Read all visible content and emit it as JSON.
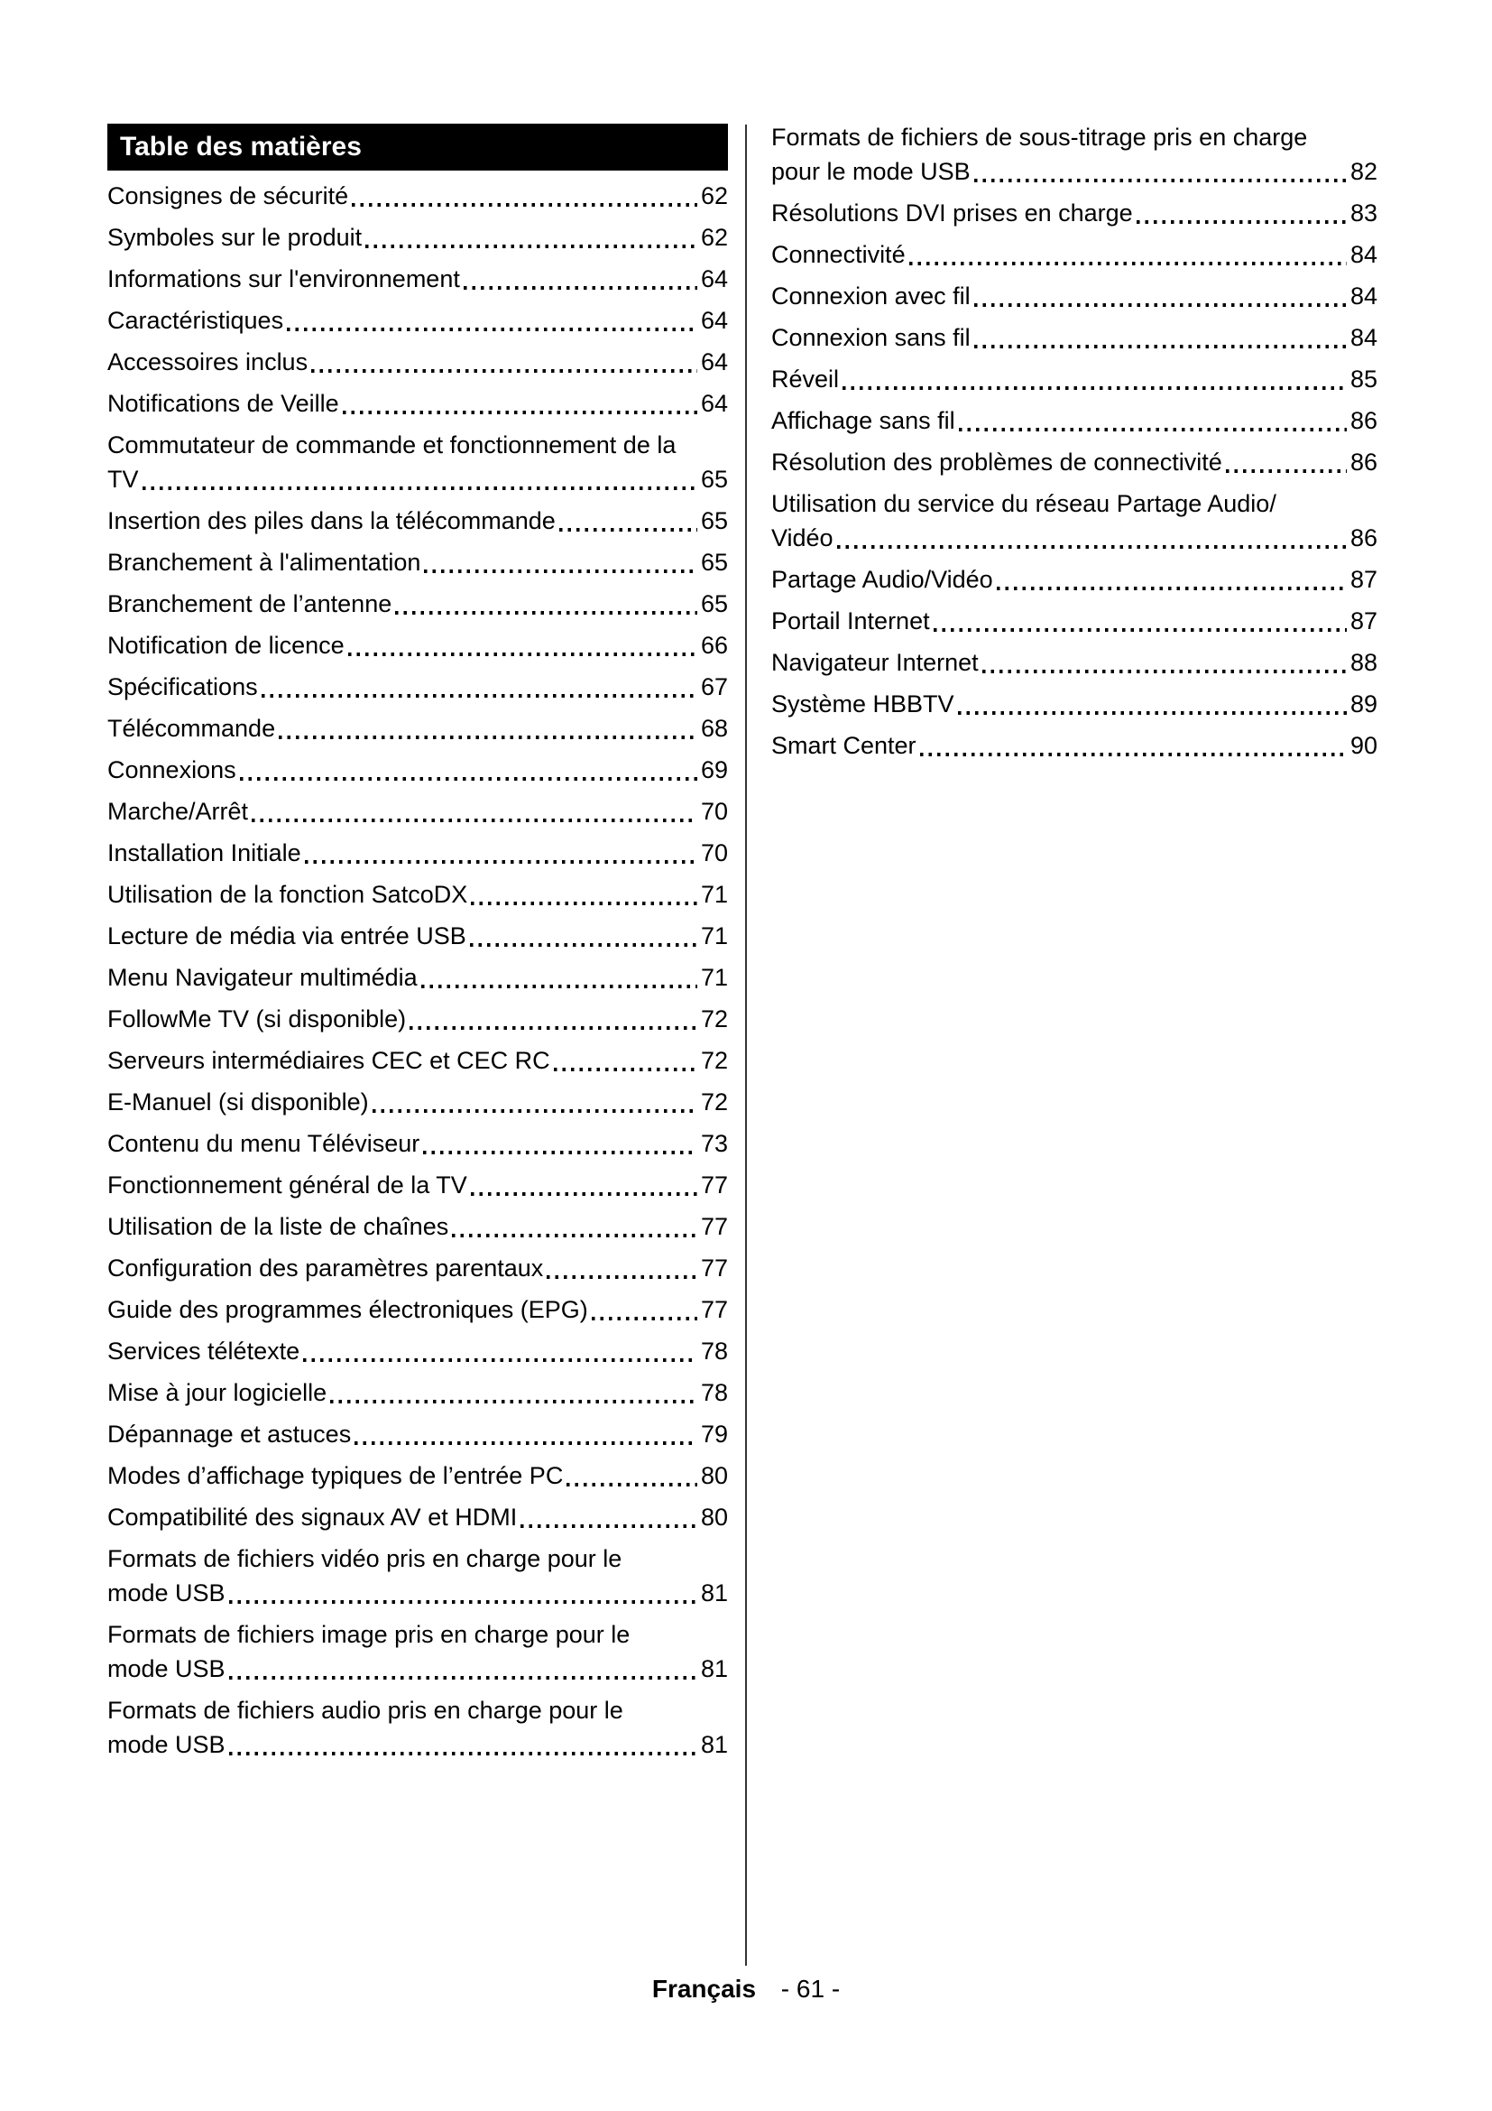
{
  "toc": {
    "title": "Table des matières",
    "header_bg": "#000000",
    "header_color": "#ffffff",
    "left_column": [
      {
        "label": "Consignes de sécurité",
        "page": "62"
      },
      {
        "label": "Symboles sur le produit",
        "page": "62"
      },
      {
        "label": "Informations sur l'environnement",
        "page": "64"
      },
      {
        "label": "Caractéristiques",
        "page": "64"
      },
      {
        "label": "Accessoires inclus",
        "page": "64"
      },
      {
        "label": "Notifications de Veille",
        "page": "64"
      },
      {
        "label": "Commutateur de commande et fonctionnement de la",
        "label2": "TV",
        "page": "65"
      },
      {
        "label": "Insertion des piles dans la télécommande",
        "page": "65"
      },
      {
        "label": "Branchement à l'alimentation",
        "page": "65"
      },
      {
        "label": "Branchement de l’antenne",
        "page": "65"
      },
      {
        "label": "Notification de licence",
        "page": "66"
      },
      {
        "label": "Spécifications",
        "page": "67"
      },
      {
        "label": "Télécommande",
        "page": "68"
      },
      {
        "label": "Connexions",
        "page": "69"
      },
      {
        "label": "Marche/Arrêt",
        "page": "70"
      },
      {
        "label": "Installation Initiale",
        "page": "70"
      },
      {
        "label": "Utilisation de la fonction SatcoDX",
        "page": "71"
      },
      {
        "label": "Lecture de média via entrée USB",
        "page": "71"
      },
      {
        "label": "Menu Navigateur multimédia",
        "page": "71"
      },
      {
        "label": "FollowMe TV (si disponible)",
        "page": "72"
      },
      {
        "label": "Serveurs intermédiaires CEC et CEC RC",
        "page": "72"
      },
      {
        "label": "E-Manuel (si disponible)",
        "page": "72"
      },
      {
        "label": "Contenu du menu Téléviseur",
        "page": "73"
      },
      {
        "label": "Fonctionnement général de la TV",
        "page": "77"
      },
      {
        "label": "Utilisation de la liste de chaînes",
        "page": "77"
      },
      {
        "label": "Configuration des paramètres parentaux",
        "page": "77"
      },
      {
        "label": "Guide des programmes électroniques (EPG)",
        "page": "77"
      },
      {
        "label": "Services télétexte",
        "page": "78"
      },
      {
        "label": "Mise à jour logicielle",
        "page": "78"
      },
      {
        "label": "Dépannage et astuces",
        "page": "79"
      },
      {
        "label": "Modes d’affichage typiques de l’entrée PC",
        "page": "80"
      },
      {
        "label": "Compatibilité des signaux AV et HDMI",
        "page": "80"
      },
      {
        "label": "Formats de fichiers vidéo pris en charge pour le",
        "label2": "mode USB",
        "page": "81"
      },
      {
        "label": "Formats de fichiers image pris en charge pour le",
        "label2": "mode USB",
        "page": "81"
      },
      {
        "label": "Formats de fichiers audio pris en charge pour le",
        "label2": "mode USB",
        "page": "81"
      }
    ],
    "right_column": [
      {
        "label": "Formats de fichiers de sous-titrage pris en charge",
        "label2": "pour le mode USB",
        "page": "82"
      },
      {
        "label": "Résolutions DVI prises en charge",
        "page": "83"
      },
      {
        "label": "Connectivité",
        "page": "84"
      },
      {
        "label": "Connexion avec fil",
        "page": "84"
      },
      {
        "label": "Connexion sans fil",
        "page": "84"
      },
      {
        "label": "Réveil",
        "page": "85"
      },
      {
        "label": "Affichage sans fil",
        "page": "86"
      },
      {
        "label": "Résolution des problèmes de connectivité",
        "page": "86"
      },
      {
        "label": "Utilisation du service du réseau Partage Audio/",
        "label2": "Vidéo",
        "page": "86"
      },
      {
        "label": "Partage Audio/Vidéo",
        "page": "87"
      },
      {
        "label": "Portail Internet",
        "page": "87"
      },
      {
        "label": "Navigateur Internet",
        "page": "88"
      },
      {
        "label": "Système HBBTV",
        "page": "89"
      },
      {
        "label": "Smart Center",
        "page": "90"
      }
    ]
  },
  "footer": {
    "language_label": "Français",
    "page_indicator": "- 61 -"
  }
}
